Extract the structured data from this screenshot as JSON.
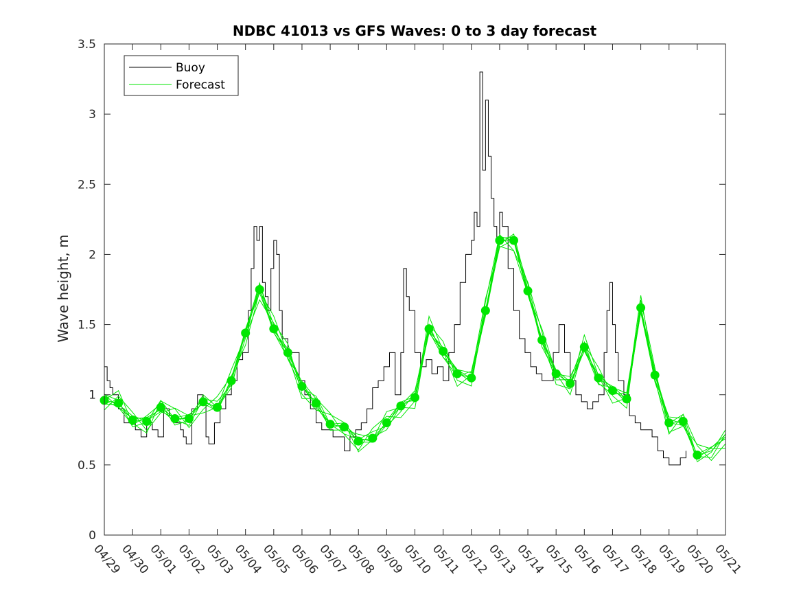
{
  "chart_data": {
    "type": "line",
    "title": "NDBC 41013 vs GFS Waves: 0 to 3 day forecast",
    "xlabel": "",
    "ylabel": "Wave height, m",
    "ylim": [
      0,
      3.5
    ],
    "xlim_days": [
      0,
      22
    ],
    "grid": false,
    "legend_position": "top-left",
    "y_ticks": [
      "0",
      "0.5",
      "1",
      "1.5",
      "2",
      "2.5",
      "3",
      "3.5"
    ],
    "y_tick_values": [
      0,
      0.5,
      1,
      1.5,
      2,
      2.5,
      3,
      3.5
    ],
    "x_ticks": [
      "04/29",
      "04/30",
      "05/01",
      "05/02",
      "05/03",
      "05/04",
      "05/05",
      "05/06",
      "05/07",
      "05/08",
      "05/09",
      "05/10",
      "05/11",
      "05/12",
      "05/13",
      "05/14",
      "05/15",
      "05/16",
      "05/17",
      "05/18",
      "05/19",
      "05/20",
      "05/21"
    ],
    "colors": {
      "buoy": "#000000",
      "forecast": "#00e600"
    },
    "series": [
      {
        "name": "Buoy",
        "x": [
          0,
          0.1,
          0.2,
          0.3,
          0.5,
          0.7,
          0.9,
          1.1,
          1.3,
          1.5,
          1.7,
          1.9,
          2.1,
          2.3,
          2.5,
          2.7,
          2.8,
          2.9,
          3.1,
          3.3,
          3.5,
          3.6,
          3.7,
          3.9,
          4.1,
          4.3,
          4.5,
          4.7,
          4.9,
          5.1,
          5.2,
          5.3,
          5.4,
          5.5,
          5.6,
          5.7,
          5.8,
          5.9,
          6.0,
          6.1,
          6.2,
          6.3,
          6.5,
          6.7,
          6.9,
          7.1,
          7.3,
          7.5,
          7.7,
          7.9,
          8.1,
          8.3,
          8.5,
          8.7,
          8.9,
          9.1,
          9.3,
          9.5,
          9.7,
          9.9,
          10.1,
          10.3,
          10.5,
          10.6,
          10.7,
          10.8,
          11.0,
          11.2,
          11.4,
          11.6,
          11.8,
          12.0,
          12.2,
          12.4,
          12.6,
          12.8,
          13.0,
          13.1,
          13.2,
          13.3,
          13.4,
          13.5,
          13.6,
          13.7,
          13.8,
          13.9,
          14.0,
          14.1,
          14.3,
          14.5,
          14.7,
          14.9,
          15.1,
          15.3,
          15.5,
          15.7,
          15.9,
          16.1,
          16.3,
          16.5,
          16.7,
          16.9,
          17.1,
          17.3,
          17.5,
          17.7,
          17.8,
          17.9,
          18.0,
          18.1,
          18.2,
          18.4,
          18.6,
          18.8,
          19.0,
          19.2,
          19.4,
          19.6,
          19.8,
          20.0,
          20.2,
          20.4,
          20.6
        ],
        "y": [
          1.2,
          1.1,
          1.05,
          1.0,
          0.9,
          0.8,
          0.8,
          0.75,
          0.7,
          0.8,
          0.75,
          0.7,
          0.9,
          0.85,
          0.8,
          0.75,
          0.7,
          0.65,
          0.9,
          1.0,
          0.95,
          0.7,
          0.65,
          0.8,
          0.9,
          1.0,
          1.1,
          1.25,
          1.3,
          1.6,
          1.9,
          2.2,
          2.1,
          2.2,
          1.8,
          1.7,
          1.6,
          1.9,
          2.1,
          2.0,
          1.6,
          1.4,
          1.3,
          1.3,
          1.1,
          1.0,
          0.9,
          0.8,
          0.75,
          0.75,
          0.7,
          0.7,
          0.6,
          0.7,
          0.75,
          0.8,
          0.9,
          1.05,
          1.1,
          1.2,
          1.3,
          1.0,
          1.3,
          1.9,
          1.7,
          1.6,
          1.3,
          1.2,
          1.25,
          1.15,
          1.2,
          1.1,
          1.3,
          1.5,
          1.8,
          2.0,
          2.1,
          2.3,
          2.2,
          3.3,
          2.6,
          3.1,
          2.7,
          2.4,
          2.2,
          2.1,
          2.3,
          2.2,
          1.9,
          1.6,
          1.4,
          1.3,
          1.2,
          1.15,
          1.1,
          1.1,
          1.3,
          1.5,
          1.3,
          1.1,
          1.0,
          0.95,
          0.9,
          0.95,
          1.0,
          1.3,
          1.6,
          1.8,
          1.5,
          1.3,
          1.1,
          1.0,
          0.85,
          0.8,
          0.75,
          0.75,
          0.7,
          0.6,
          0.55,
          0.5,
          0.5,
          0.55,
          0.6
        ]
      },
      {
        "name": "Forecast",
        "x": [
          0,
          0.5,
          1,
          1.5,
          2,
          2.5,
          3,
          3.5,
          4,
          4.5,
          5,
          5.5,
          6,
          6.5,
          7,
          7.5,
          8,
          8.5,
          9,
          9.5,
          10,
          10.5,
          11,
          11.5,
          12,
          12.5,
          13,
          13.5,
          14,
          14.5,
          15,
          15.5,
          16,
          16.5,
          17,
          17.5,
          18,
          18.5,
          19,
          19.5,
          20,
          20.5,
          21,
          21.5,
          22
        ],
        "y": [
          0.96,
          0.94,
          0.82,
          0.81,
          0.91,
          0.83,
          0.83,
          0.95,
          0.91,
          1.1,
          1.44,
          1.75,
          1.47,
          1.3,
          1.06,
          0.94,
          0.79,
          0.77,
          0.67,
          0.69,
          0.8,
          0.92,
          0.98,
          1.47,
          1.31,
          1.15,
          1.12,
          1.6,
          2.1,
          2.1,
          1.74,
          1.39,
          1.15,
          1.08,
          1.34,
          1.12,
          1.03,
          0.97,
          1.62,
          1.14,
          0.8,
          0.81,
          0.57,
          0.6,
          0.7
        ]
      }
    ],
    "forecast_markers_x": [
      0,
      0.5,
      1,
      1.5,
      2,
      2.5,
      3,
      3.5,
      4,
      4.5,
      5,
      5.5,
      6,
      6.5,
      7,
      7.5,
      8,
      8.5,
      9,
      9.5,
      10,
      10.5,
      11,
      11.5,
      12,
      12.5,
      13,
      13.5,
      14,
      14.5,
      15,
      15.5,
      16,
      16.5,
      17,
      17.5,
      18,
      18.5,
      19,
      19.5,
      20,
      20.5,
      21
    ],
    "forecast_markers_y": [
      0.96,
      0.94,
      0.82,
      0.81,
      0.91,
      0.83,
      0.83,
      0.95,
      0.91,
      1.1,
      1.44,
      1.75,
      1.47,
      1.3,
      1.06,
      0.94,
      0.79,
      0.77,
      0.67,
      0.69,
      0.8,
      0.92,
      0.98,
      1.47,
      1.31,
      1.15,
      1.12,
      1.6,
      2.1,
      2.1,
      1.74,
      1.39,
      1.15,
      1.08,
      1.34,
      1.12,
      1.03,
      0.97,
      1.62,
      1.14,
      0.8,
      0.81,
      0.57
    ]
  }
}
